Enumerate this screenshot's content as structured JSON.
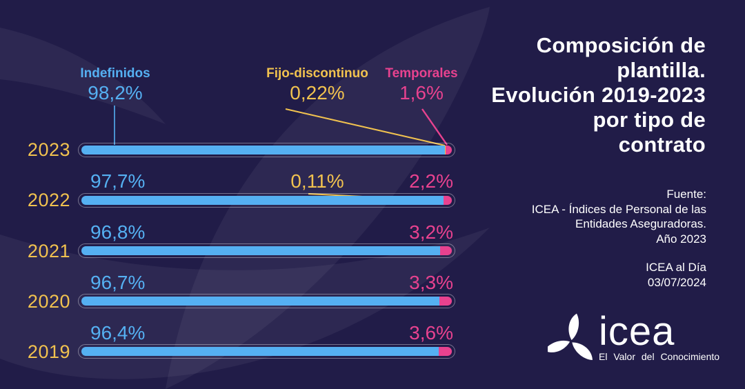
{
  "title_lines": [
    "Composición de",
    "plantilla.",
    "Evolución 2019-2023",
    "por tipo de",
    "contrato"
  ],
  "title_full": "Composición de plantilla. Evolución 2019-2023 por tipo de contrato",
  "legend": {
    "indefinidos": "Indefinidos",
    "fijo_discontinuo": "Fijo-discontinuo",
    "temporales": "Temporales"
  },
  "chart_data": {
    "type": "bar",
    "orientation": "horizontal",
    "stacked": true,
    "unit": "%",
    "xlim": [
      0,
      100
    ],
    "legend_position": "top",
    "categories": [
      "2023",
      "2022",
      "2021",
      "2020",
      "2019"
    ],
    "series": [
      {
        "name": "Indefinidos",
        "color": "#55b0f2",
        "values": [
          98.2,
          97.7,
          96.8,
          96.7,
          96.4
        ],
        "labels": [
          "98,2%",
          "97,7%",
          "96,8%",
          "96,7%",
          "96,4%"
        ]
      },
      {
        "name": "Fijo-discontinuo",
        "color": "#f1c24f",
        "values": [
          0.22,
          0.11,
          null,
          null,
          null
        ],
        "labels": [
          "0,22%",
          "0,11%",
          "",
          "",
          ""
        ]
      },
      {
        "name": "Temporales",
        "color": "#e8428f",
        "values": [
          1.6,
          2.2,
          3.2,
          3.3,
          3.6
        ],
        "labels": [
          "1,6%",
          "2,2%",
          "3,2%",
          "3,3%",
          "3,6%"
        ]
      }
    ]
  },
  "source": {
    "heading": "Fuente:",
    "lines": [
      "ICEA - Índices de Personal de las",
      "Entidades Aseguradoras.",
      "Año 2023"
    ],
    "publication": "ICEA al Día",
    "date": "03/07/2024"
  },
  "logo": {
    "wordmark": "icea",
    "tagline": "El Valor del Conocimiento"
  },
  "colors": {
    "background": "#211c48",
    "indefinidos": "#55b0f2",
    "fijo_discontinuo": "#f1c24f",
    "temporales": "#e8428f",
    "year_label": "#f1c24f",
    "title": "#ffffff"
  }
}
